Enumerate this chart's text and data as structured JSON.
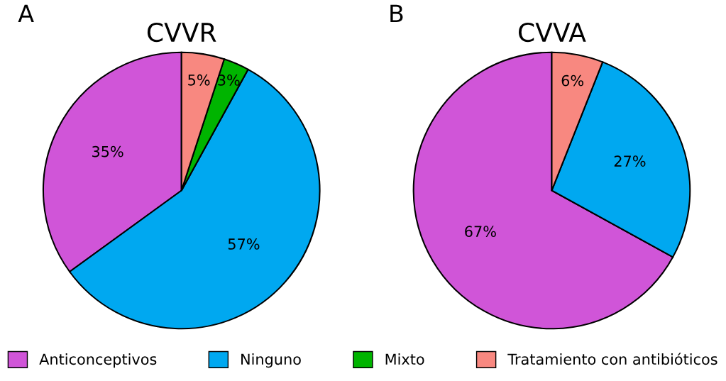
{
  "chart_data": [
    {
      "type": "pie",
      "title": "CVVR",
      "annotations": [
        "A"
      ],
      "categories": [
        "Anticonceptivos",
        "Ninguno",
        "Mixto",
        "Tratamiento con antibióticos"
      ],
      "values": [
        35,
        57,
        3,
        5
      ],
      "colors": [
        "#d055d8",
        "#00a8f0",
        "#00b400",
        "#f88880"
      ],
      "value_labels": [
        "35%",
        "57%",
        "3%",
        "5%"
      ],
      "legend": "bottom"
    },
    {
      "type": "pie",
      "title": "CVVA",
      "annotations": [
        "B"
      ],
      "categories": [
        null,
        null,
        null
      ],
      "values": [
        67,
        27,
        6
      ],
      "colors": [
        "#d055d8",
        "#00a8f0",
        "#f88880"
      ],
      "value_labels": [
        "67%",
        "27%",
        "6%"
      ]
    }
  ]
}
